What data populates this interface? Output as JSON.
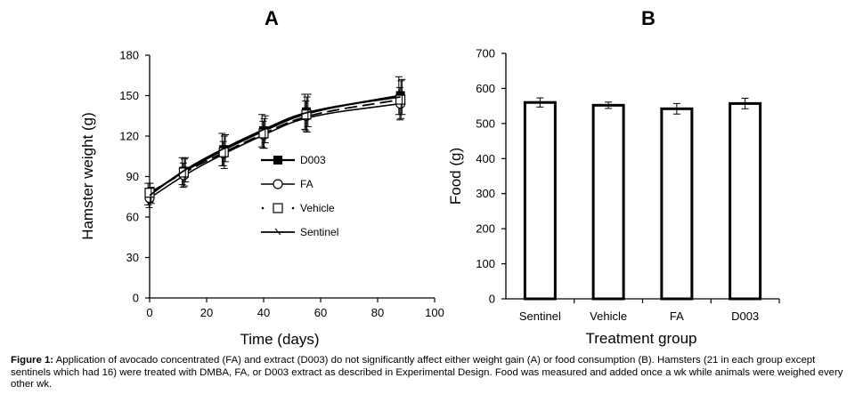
{
  "chart_data": [
    {
      "type": "line",
      "panel_label": "A",
      "xlabel": "Time (days)",
      "ylabel": "Hamster weight (g)",
      "xlim": [
        0,
        100
      ],
      "ylim": [
        0,
        180
      ],
      "x_ticks": [
        "0",
        "20",
        "40",
        "60",
        "80",
        "100"
      ],
      "y_ticks": [
        "0",
        "30",
        "60",
        "90",
        "120",
        "150",
        "180"
      ],
      "grid": false,
      "legend_position": "center-left",
      "series": [
        {
          "name": "D003",
          "marker": "filled-square",
          "x": [
            0,
            12,
            26,
            40,
            55,
            88
          ],
          "y": [
            77,
            94,
            110,
            124,
            138,
            150
          ],
          "err": [
            8,
            10,
            12,
            12,
            13,
            14
          ]
        },
        {
          "name": "FA",
          "marker": "open-circle",
          "x": [
            0,
            12,
            26,
            40,
            55,
            88
          ],
          "y": [
            74,
            91,
            107,
            121,
            135,
            144
          ],
          "err": [
            7,
            9,
            9,
            10,
            11,
            12
          ]
        },
        {
          "name": "Vehicle",
          "marker": "open-square",
          "x": [
            0,
            12,
            26,
            40,
            55,
            88
          ],
          "y": [
            78,
            93,
            108,
            122,
            136,
            147
          ],
          "err": [
            7,
            10,
            12,
            11,
            13,
            14
          ]
        },
        {
          "name": "Sentinel",
          "marker": "none",
          "x": [
            0,
            12,
            26,
            40,
            55,
            88
          ],
          "y": [
            76,
            95,
            111,
            125,
            139,
            149
          ],
          "err": [
            6,
            9,
            10,
            10,
            12,
            13
          ]
        }
      ]
    },
    {
      "type": "bar",
      "panel_label": "B",
      "xlabel": "Treatment group",
      "ylabel": "Food (g)",
      "ylim": [
        0,
        700
      ],
      "y_ticks": [
        "0",
        "100",
        "200",
        "300",
        "400",
        "500",
        "600",
        "700"
      ],
      "categories": [
        "Sentinel",
        "Vehicle",
        "FA",
        "D003"
      ],
      "values": [
        560,
        552,
        542,
        557
      ],
      "err": [
        13,
        9,
        15,
        15
      ],
      "grid": false
    }
  ],
  "caption": {
    "label": "Figure 1:",
    "text": " Application of avocado concentrated (FA) and extract (D003) do not significantly affect either weight gain (A) or food consumption (B).  Hamsters (21 in each group except sentinels which had 16) were treated with DMBA, FA, or D003 extract as described in Experimental Design. Food was measured and added once a wk while animals were weighed every other wk."
  }
}
